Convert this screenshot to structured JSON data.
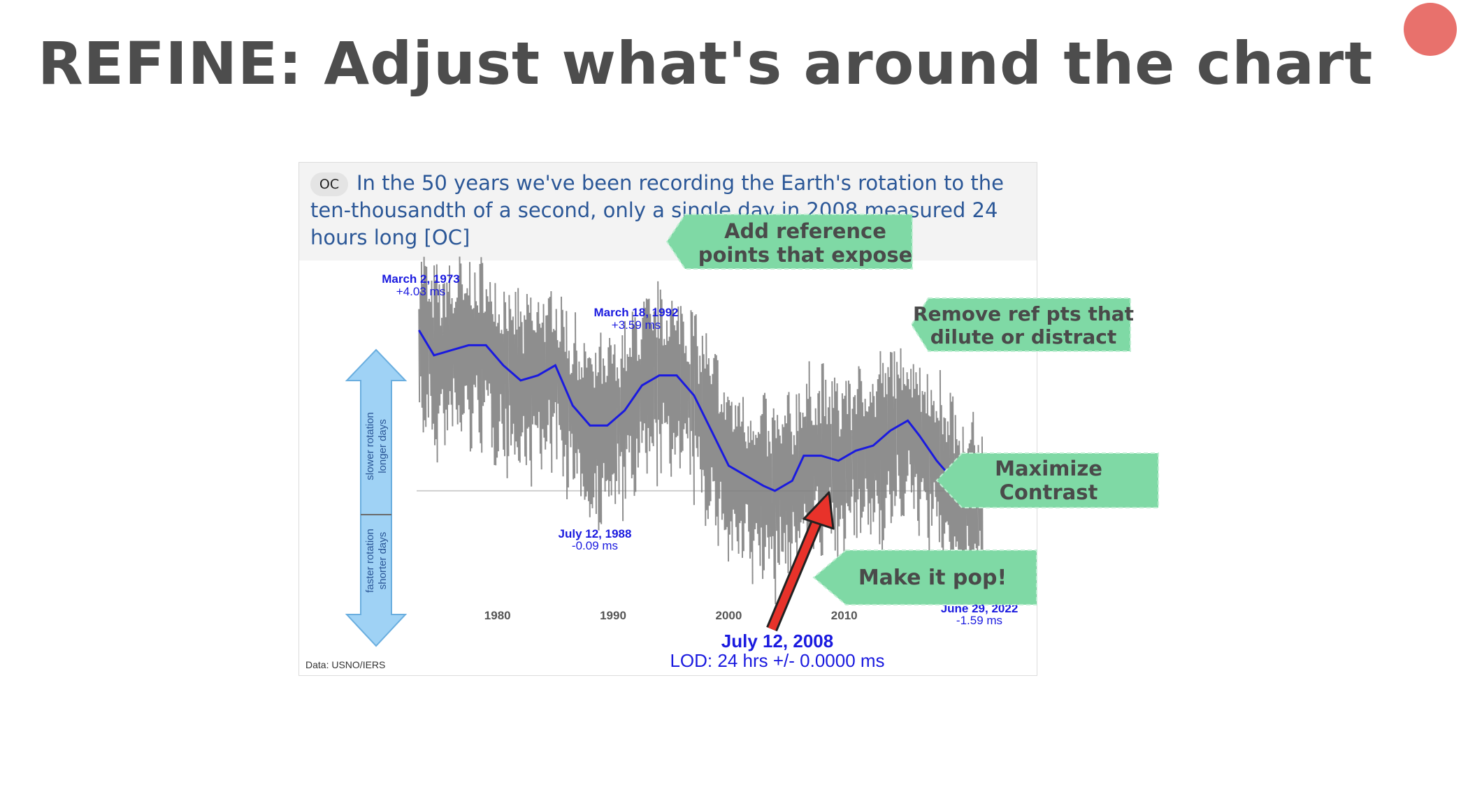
{
  "slide": {
    "title": "REFINE: Adjust what's around the chart"
  },
  "post": {
    "badge": "OC",
    "title": "In the 50 years we've been recording the Earth's rotation to the ten-thousandth of a second, only a single day in 2008 measured 24 hours long [OC]"
  },
  "chart_data": {
    "type": "line",
    "source": "Data: USNO/IERS",
    "x_ticks": [
      "1980",
      "1990",
      "2000",
      "2010"
    ],
    "xlim": [
      1973,
      2022.6
    ],
    "ylim": [
      -2.2,
      4.2
    ],
    "y_direction_labels": {
      "up": [
        "slower rotation",
        "longer days"
      ],
      "down": [
        "faster rotation",
        "shorter days"
      ]
    },
    "series": [
      {
        "name": "",
        "color": "#1a1adf",
        "x": [
          1973.2,
          1974.5,
          1976.0,
          1977.5,
          1979.0,
          1980.5,
          1982.0,
          1983.5,
          1985.0,
          1986.5,
          1988.0,
          1989.5,
          1991.0,
          1992.5,
          1994.0,
          1995.5,
          1997.0,
          1998.5,
          2000.0,
          2001.5,
          2003.0,
          2004.0,
          2005.5,
          2006.5,
          2008.0,
          2009.5,
          2011.0,
          2012.5,
          2014.0,
          2015.5,
          2016.5,
          2018.0,
          2019.5,
          2021.0,
          2022.0
        ],
        "y": [
          3.2,
          2.7,
          2.8,
          2.9,
          2.9,
          2.5,
          2.2,
          2.3,
          2.5,
          1.7,
          1.3,
          1.3,
          1.6,
          2.1,
          2.3,
          2.3,
          1.9,
          1.2,
          0.5,
          0.3,
          0.1,
          0.0,
          0.2,
          0.7,
          0.7,
          0.6,
          0.8,
          0.9,
          1.2,
          1.4,
          1.1,
          0.6,
          0.2,
          -0.2,
          -0.3
        ]
      }
    ],
    "annotations": [
      {
        "date": "March 2, 1973",
        "value": "+4.03 ms"
      },
      {
        "date": "March 18, 1992",
        "value": "+3.59 ms"
      },
      {
        "date": "July 12, 1988",
        "value": "-0.09 ms"
      },
      {
        "date": "June 29, 2022",
        "value": "-1.59 ms"
      },
      {
        "date": "July 12, 2008",
        "value": "LOD: 24 hrs +/- 0.0000 ms"
      }
    ],
    "highlight_color": "#e8322a",
    "reference_line": 0
  },
  "callouts": [
    {
      "lines": [
        "Add reference",
        "points that expose"
      ]
    },
    {
      "lines": [
        "Remove ref pts that",
        "dilute or distract"
      ]
    },
    {
      "lines": [
        "Maximize",
        "Contrast"
      ]
    },
    {
      "lines": [
        "Make it pop!"
      ]
    }
  ],
  "colors": {
    "callout_fill": "#7fd9a5",
    "callout_border": "#bfeed2",
    "annotation_blue": "#1a1adf",
    "noise_gray": "#7a7a7a",
    "arrow_blue": "#9fd2f5"
  }
}
